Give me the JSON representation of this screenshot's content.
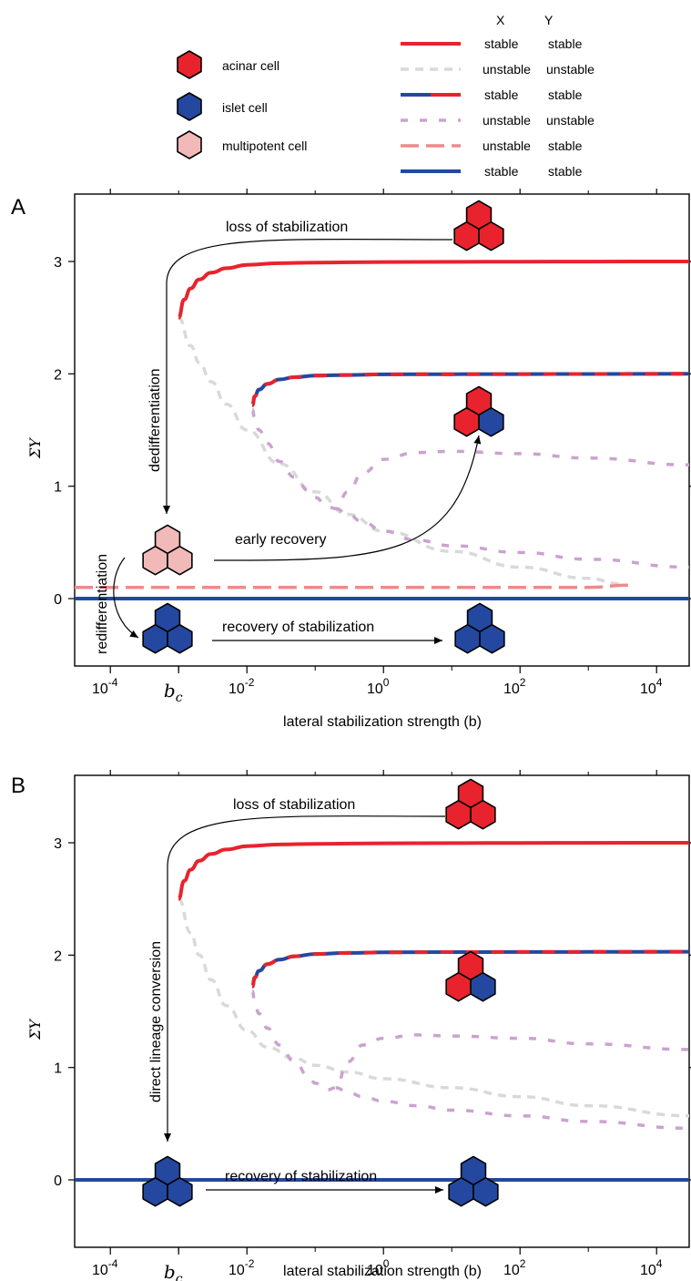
{
  "legend_cells": [
    {
      "label": "acinar cell",
      "type": "acinar",
      "color": "#e8232d"
    },
    {
      "label": "islet cell",
      "type": "islet",
      "color": "#2448a0"
    },
    {
      "label": "multipotent cell",
      "type": "multipotent",
      "color": "#f2b9b9"
    }
  ],
  "legend_lines": {
    "header": {
      "x": "X",
      "y": "Y"
    },
    "items": [
      {
        "style": "red-solid",
        "x_label": "stable",
        "y_label": "stable"
      },
      {
        "style": "gray-dash",
        "x_label": "unstable",
        "y_label": "unstable"
      },
      {
        "style": "blue-red-solid",
        "x_label": "stable",
        "y_label": "stable"
      },
      {
        "style": "purple-dash",
        "x_label": "unstable",
        "y_label": "unstable"
      },
      {
        "style": "pink-dash",
        "x_label": "unstable",
        "y_label": "stable"
      },
      {
        "style": "blue-solid",
        "x_label": "stable",
        "y_label": "stable"
      }
    ]
  },
  "colors": {
    "red": "#e8232d",
    "blue": "#2448a0",
    "gray": "#d9d9d9",
    "purple": "#cba2cf",
    "pink": "#ee8a8a",
    "multipotent": "#f2b9b9"
  },
  "chart_data": [
    {
      "panel": "A",
      "type": "line",
      "xscale": "log",
      "xlim": [
        3e-05,
        30000
      ],
      "ylim": [
        -0.6,
        3.6
      ],
      "xticks": [
        {
          "value": 0.0001,
          "base": "10",
          "exp": "-4"
        },
        {
          "value": 0.01,
          "base": "10",
          "exp": "-2"
        },
        {
          "value": 1,
          "base": "10",
          "exp": "0"
        },
        {
          "value": 100,
          "base": "10",
          "exp": "2"
        },
        {
          "value": 10000,
          "base": "10",
          "exp": "4"
        }
      ],
      "bc": {
        "value": 0.001,
        "label": "b",
        "sub": "c"
      },
      "yticks": [
        0,
        1,
        2,
        3
      ],
      "xlabel": "lateral stabilization strength (b)",
      "ylabel": "ΣY",
      "series": [
        {
          "style": "red-solid",
          "x": [
            0.001,
            0.0012,
            0.0015,
            0.002,
            0.003,
            0.005,
            0.01,
            0.03,
            0.1,
            1,
            10,
            100,
            1000,
            30000
          ],
          "y": [
            2.5,
            2.66,
            2.76,
            2.84,
            2.9,
            2.94,
            2.97,
            2.985,
            2.99,
            2.995,
            2.997,
            2.998,
            2.999,
            3.0
          ]
        },
        {
          "style": "blue-red-solid",
          "x": [
            0.012,
            0.013,
            0.015,
            0.02,
            0.03,
            0.05,
            0.1,
            0.3,
            1,
            10,
            100,
            1000,
            30000
          ],
          "y": [
            1.72,
            1.8,
            1.86,
            1.91,
            1.95,
            1.97,
            1.985,
            1.99,
            1.995,
            1.997,
            1.998,
            1.999,
            2.0
          ]
        },
        {
          "style": "gray-dash",
          "x": [
            0.001,
            0.0015,
            0.002,
            0.003,
            0.005,
            0.01,
            0.03,
            0.1,
            0.3,
            1,
            10,
            100,
            1000,
            3000
          ],
          "y": [
            2.5,
            2.25,
            2.1,
            1.93,
            1.73,
            1.5,
            1.2,
            0.95,
            0.75,
            0.6,
            0.42,
            0.28,
            0.18,
            0.13
          ]
        },
        {
          "style": "purple-dash",
          "x": [
            0.012,
            0.013,
            0.015,
            0.02,
            0.03,
            0.05,
            0.08,
            0.1,
            0.15,
            0.2,
            0.3,
            0.5,
            1,
            3,
            10,
            100,
            1000,
            30000
          ],
          "y": [
            1.68,
            1.6,
            1.5,
            1.38,
            1.22,
            1.08,
            0.96,
            0.9,
            0.82,
            0.8,
            0.95,
            1.12,
            1.24,
            1.3,
            1.31,
            1.29,
            1.25,
            1.19
          ]
        },
        {
          "style": "purple-dash",
          "x": [
            0.2,
            0.3,
            0.5,
            1,
            3,
            10,
            100,
            1000,
            30000
          ],
          "y": [
            0.8,
            0.75,
            0.68,
            0.6,
            0.52,
            0.47,
            0.41,
            0.35,
            0.28
          ]
        },
        {
          "style": "pink-dash",
          "x": [
            3e-05,
            0.001,
            0.1,
            10,
            1000,
            4000
          ],
          "y": [
            0.1,
            0.1,
            0.1,
            0.1,
            0.1,
            0.12
          ]
        },
        {
          "style": "blue-solid",
          "x": [
            3e-05,
            30000
          ],
          "y": [
            0,
            0
          ]
        }
      ],
      "annotations": {
        "loss": "loss of stabilization",
        "dediff": "dedifferentiation",
        "early": "early recovery",
        "rediff": "redifferentiation",
        "recovery": "recovery of stabilization"
      }
    },
    {
      "panel": "B",
      "type": "line",
      "xscale": "log",
      "xlim": [
        3e-05,
        30000
      ],
      "ylim": [
        -0.6,
        3.6
      ],
      "xticks": [
        {
          "value": 0.0001,
          "base": "10",
          "exp": "-4"
        },
        {
          "value": 0.01,
          "base": "10",
          "exp": "-2"
        },
        {
          "value": 1,
          "base": "10",
          "exp": "0"
        },
        {
          "value": 100,
          "base": "10",
          "exp": "2"
        },
        {
          "value": 10000,
          "base": "10",
          "exp": "4"
        }
      ],
      "bc": {
        "value": 0.001,
        "label": "b",
        "sub": "c"
      },
      "yticks": [
        0,
        1,
        2,
        3
      ],
      "xlabel": "lateral stabilization strength (b)",
      "ylabel": "ΣY",
      "series": [
        {
          "style": "red-solid",
          "x": [
            0.001,
            0.0012,
            0.0015,
            0.002,
            0.003,
            0.005,
            0.01,
            0.03,
            0.1,
            1,
            10,
            100,
            1000,
            30000
          ],
          "y": [
            2.5,
            2.66,
            2.76,
            2.84,
            2.9,
            2.94,
            2.97,
            2.985,
            2.99,
            2.995,
            2.997,
            2.998,
            2.999,
            3.0
          ]
        },
        {
          "style": "blue-red-solid",
          "x": [
            0.012,
            0.013,
            0.015,
            0.02,
            0.03,
            0.05,
            0.1,
            0.3,
            1,
            10,
            100,
            1000,
            30000
          ],
          "y": [
            1.72,
            1.8,
            1.86,
            1.92,
            1.96,
            1.99,
            2.01,
            2.02,
            2.025,
            2.027,
            2.028,
            2.029,
            2.03
          ]
        },
        {
          "style": "gray-dash",
          "x": [
            0.001,
            0.0015,
            0.002,
            0.003,
            0.005,
            0.01,
            0.02,
            0.05,
            0.1,
            0.3,
            1,
            10,
            100,
            1000,
            30000
          ],
          "y": [
            2.5,
            2.2,
            2.0,
            1.78,
            1.55,
            1.33,
            1.18,
            1.08,
            1.02,
            0.96,
            0.9,
            0.82,
            0.74,
            0.66,
            0.57
          ]
        },
        {
          "style": "purple-dash",
          "x": [
            0.012,
            0.013,
            0.015,
            0.02,
            0.03,
            0.05,
            0.08,
            0.1,
            0.15,
            0.2,
            0.3,
            0.5,
            1,
            3,
            10,
            100,
            1000,
            30000
          ],
          "y": [
            1.68,
            1.58,
            1.48,
            1.35,
            1.2,
            1.05,
            0.92,
            0.86,
            0.8,
            0.82,
            1.05,
            1.2,
            1.26,
            1.29,
            1.28,
            1.26,
            1.21,
            1.16
          ]
        },
        {
          "style": "purple-dash",
          "x": [
            0.2,
            0.3,
            0.5,
            1,
            3,
            10,
            100,
            1000,
            30000
          ],
          "y": [
            0.82,
            0.78,
            0.74,
            0.7,
            0.66,
            0.62,
            0.57,
            0.52,
            0.46
          ]
        },
        {
          "style": "blue-solid",
          "x": [
            3e-05,
            30000
          ],
          "y": [
            0,
            0
          ]
        }
      ],
      "annotations": {
        "loss": "loss of stabilization",
        "direct": "direct lineage conversion",
        "recovery": "recovery of stabilization"
      }
    }
  ],
  "panel_labels": [
    "A",
    "B"
  ]
}
